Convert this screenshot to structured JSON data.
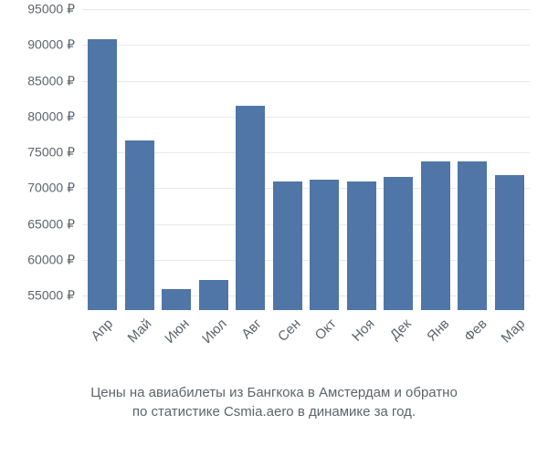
{
  "chart": {
    "type": "bar",
    "background_color": "#ffffff",
    "grid_color": "#e9e9ec",
    "bar_color": "#4f76a6",
    "text_color": "#5e6469",
    "ylim_min": 53000,
    "ylim_max": 95000,
    "ytick_step": 5000,
    "currency_symbol": "₽",
    "yticks": [
      {
        "value": 55000,
        "label": "55000 ₽"
      },
      {
        "value": 60000,
        "label": "60000 ₽"
      },
      {
        "value": 65000,
        "label": "65000 ₽"
      },
      {
        "value": 70000,
        "label": "70000 ₽"
      },
      {
        "value": 75000,
        "label": "75000 ₽"
      },
      {
        "value": 80000,
        "label": "80000 ₽"
      },
      {
        "value": 85000,
        "label": "85000 ₽"
      },
      {
        "value": 90000,
        "label": "90000 ₽"
      },
      {
        "value": 95000,
        "label": "95000 ₽"
      }
    ],
    "categories": [
      "Апр",
      "Май",
      "Июн",
      "Июл",
      "Авг",
      "Сен",
      "Окт",
      "Ноя",
      "Дек",
      "Янв",
      "Фев",
      "Мар"
    ],
    "values": [
      90800,
      76700,
      55900,
      57200,
      81500,
      71000,
      71200,
      71000,
      71600,
      73800,
      73800,
      71800
    ],
    "bar_width_ratio": 0.78,
    "axis_fontsize": 14,
    "xlabel_fontsize": 15,
    "xlabel_rotation_deg": -45,
    "caption_fontsize": 15,
    "caption_line1": "Цены на авиабилеты из Бангкока в Амстердам и обратно",
    "caption_line2": "по статистике Csmia.aero в динамике за год."
  }
}
